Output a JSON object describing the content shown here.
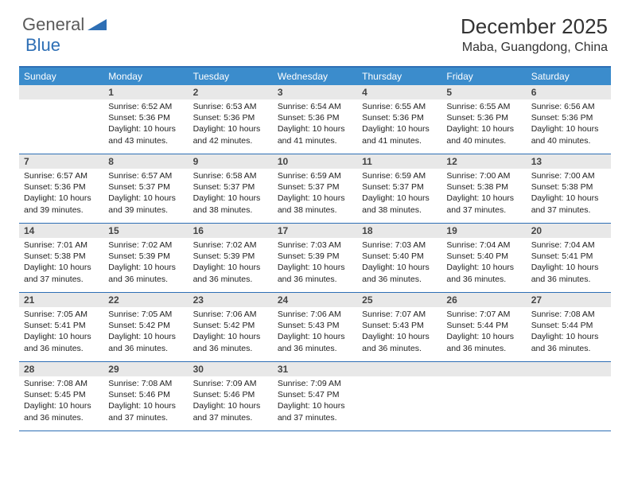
{
  "logo": {
    "general": "General",
    "blue": "Blue"
  },
  "colors": {
    "accent": "#2e6fb5",
    "header_bg": "#3b8ccc",
    "daynum_bg": "#e8e8e8",
    "text": "#333333"
  },
  "title": "December 2025",
  "location": "Maba, Guangdong, China",
  "daynames": [
    "Sunday",
    "Monday",
    "Tuesday",
    "Wednesday",
    "Thursday",
    "Friday",
    "Saturday"
  ],
  "weeks": [
    [
      {
        "n": "",
        "sr": "",
        "ss": "",
        "dl": ""
      },
      {
        "n": "1",
        "sr": "Sunrise: 6:52 AM",
        "ss": "Sunset: 5:36 PM",
        "dl": "Daylight: 10 hours and 43 minutes."
      },
      {
        "n": "2",
        "sr": "Sunrise: 6:53 AM",
        "ss": "Sunset: 5:36 PM",
        "dl": "Daylight: 10 hours and 42 minutes."
      },
      {
        "n": "3",
        "sr": "Sunrise: 6:54 AM",
        "ss": "Sunset: 5:36 PM",
        "dl": "Daylight: 10 hours and 41 minutes."
      },
      {
        "n": "4",
        "sr": "Sunrise: 6:55 AM",
        "ss": "Sunset: 5:36 PM",
        "dl": "Daylight: 10 hours and 41 minutes."
      },
      {
        "n": "5",
        "sr": "Sunrise: 6:55 AM",
        "ss": "Sunset: 5:36 PM",
        "dl": "Daylight: 10 hours and 40 minutes."
      },
      {
        "n": "6",
        "sr": "Sunrise: 6:56 AM",
        "ss": "Sunset: 5:36 PM",
        "dl": "Daylight: 10 hours and 40 minutes."
      }
    ],
    [
      {
        "n": "7",
        "sr": "Sunrise: 6:57 AM",
        "ss": "Sunset: 5:36 PM",
        "dl": "Daylight: 10 hours and 39 minutes."
      },
      {
        "n": "8",
        "sr": "Sunrise: 6:57 AM",
        "ss": "Sunset: 5:37 PM",
        "dl": "Daylight: 10 hours and 39 minutes."
      },
      {
        "n": "9",
        "sr": "Sunrise: 6:58 AM",
        "ss": "Sunset: 5:37 PM",
        "dl": "Daylight: 10 hours and 38 minutes."
      },
      {
        "n": "10",
        "sr": "Sunrise: 6:59 AM",
        "ss": "Sunset: 5:37 PM",
        "dl": "Daylight: 10 hours and 38 minutes."
      },
      {
        "n": "11",
        "sr": "Sunrise: 6:59 AM",
        "ss": "Sunset: 5:37 PM",
        "dl": "Daylight: 10 hours and 38 minutes."
      },
      {
        "n": "12",
        "sr": "Sunrise: 7:00 AM",
        "ss": "Sunset: 5:38 PM",
        "dl": "Daylight: 10 hours and 37 minutes."
      },
      {
        "n": "13",
        "sr": "Sunrise: 7:00 AM",
        "ss": "Sunset: 5:38 PM",
        "dl": "Daylight: 10 hours and 37 minutes."
      }
    ],
    [
      {
        "n": "14",
        "sr": "Sunrise: 7:01 AM",
        "ss": "Sunset: 5:38 PM",
        "dl": "Daylight: 10 hours and 37 minutes."
      },
      {
        "n": "15",
        "sr": "Sunrise: 7:02 AM",
        "ss": "Sunset: 5:39 PM",
        "dl": "Daylight: 10 hours and 36 minutes."
      },
      {
        "n": "16",
        "sr": "Sunrise: 7:02 AM",
        "ss": "Sunset: 5:39 PM",
        "dl": "Daylight: 10 hours and 36 minutes."
      },
      {
        "n": "17",
        "sr": "Sunrise: 7:03 AM",
        "ss": "Sunset: 5:39 PM",
        "dl": "Daylight: 10 hours and 36 minutes."
      },
      {
        "n": "18",
        "sr": "Sunrise: 7:03 AM",
        "ss": "Sunset: 5:40 PM",
        "dl": "Daylight: 10 hours and 36 minutes."
      },
      {
        "n": "19",
        "sr": "Sunrise: 7:04 AM",
        "ss": "Sunset: 5:40 PM",
        "dl": "Daylight: 10 hours and 36 minutes."
      },
      {
        "n": "20",
        "sr": "Sunrise: 7:04 AM",
        "ss": "Sunset: 5:41 PM",
        "dl": "Daylight: 10 hours and 36 minutes."
      }
    ],
    [
      {
        "n": "21",
        "sr": "Sunrise: 7:05 AM",
        "ss": "Sunset: 5:41 PM",
        "dl": "Daylight: 10 hours and 36 minutes."
      },
      {
        "n": "22",
        "sr": "Sunrise: 7:05 AM",
        "ss": "Sunset: 5:42 PM",
        "dl": "Daylight: 10 hours and 36 minutes."
      },
      {
        "n": "23",
        "sr": "Sunrise: 7:06 AM",
        "ss": "Sunset: 5:42 PM",
        "dl": "Daylight: 10 hours and 36 minutes."
      },
      {
        "n": "24",
        "sr": "Sunrise: 7:06 AM",
        "ss": "Sunset: 5:43 PM",
        "dl": "Daylight: 10 hours and 36 minutes."
      },
      {
        "n": "25",
        "sr": "Sunrise: 7:07 AM",
        "ss": "Sunset: 5:43 PM",
        "dl": "Daylight: 10 hours and 36 minutes."
      },
      {
        "n": "26",
        "sr": "Sunrise: 7:07 AM",
        "ss": "Sunset: 5:44 PM",
        "dl": "Daylight: 10 hours and 36 minutes."
      },
      {
        "n": "27",
        "sr": "Sunrise: 7:08 AM",
        "ss": "Sunset: 5:44 PM",
        "dl": "Daylight: 10 hours and 36 minutes."
      }
    ],
    [
      {
        "n": "28",
        "sr": "Sunrise: 7:08 AM",
        "ss": "Sunset: 5:45 PM",
        "dl": "Daylight: 10 hours and 36 minutes."
      },
      {
        "n": "29",
        "sr": "Sunrise: 7:08 AM",
        "ss": "Sunset: 5:46 PM",
        "dl": "Daylight: 10 hours and 37 minutes."
      },
      {
        "n": "30",
        "sr": "Sunrise: 7:09 AM",
        "ss": "Sunset: 5:46 PM",
        "dl": "Daylight: 10 hours and 37 minutes."
      },
      {
        "n": "31",
        "sr": "Sunrise: 7:09 AM",
        "ss": "Sunset: 5:47 PM",
        "dl": "Daylight: 10 hours and 37 minutes."
      },
      {
        "n": "",
        "sr": "",
        "ss": "",
        "dl": ""
      },
      {
        "n": "",
        "sr": "",
        "ss": "",
        "dl": ""
      },
      {
        "n": "",
        "sr": "",
        "ss": "",
        "dl": ""
      }
    ]
  ]
}
